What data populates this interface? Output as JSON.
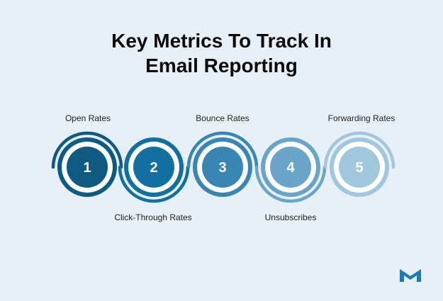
{
  "title": {
    "line1": "Key Metrics To Track In",
    "line2": "Email Reporting"
  },
  "steps": [
    {
      "number": "1",
      "label": "Open Rates",
      "color": "#0e5a80"
    },
    {
      "number": "2",
      "label": "Click-Through Rates",
      "color": "#11709f"
    },
    {
      "number": "3",
      "label": "Bounce Rates",
      "color": "#3a86b3"
    },
    {
      "number": "4",
      "label": "Unsubscribes",
      "color": "#6aa5c9"
    },
    {
      "number": "5",
      "label": "Forwarding Rates",
      "color": "#a1c7de"
    }
  ],
  "colors": {
    "background": "#e8f0f7",
    "ring_fill": "#ffffff",
    "number_text": "#ffffff",
    "logo": "#1d7cb4"
  },
  "icons": {
    "brand": "m-logo-icon"
  }
}
